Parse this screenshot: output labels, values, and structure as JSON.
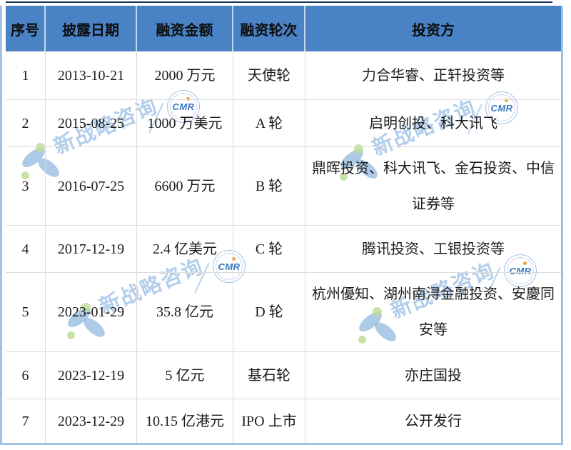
{
  "table": {
    "columns": [
      "序号",
      "披露日期",
      "融资金额",
      "融资轮次",
      "投资方"
    ],
    "rows": [
      {
        "no": "1",
        "date": "2013-10-21",
        "amount": "2000 万元",
        "round": "天使轮",
        "investors": "力合华睿、正轩投资等"
      },
      {
        "no": "2",
        "date": "2015-08-25",
        "amount": "1000 万美元",
        "round": "A 轮",
        "investors": "启明创投、科大讯飞"
      },
      {
        "no": "3",
        "date": "2016-07-25",
        "amount": "6600 万元",
        "round": "B 轮",
        "investors": "鼎晖投资、科大讯飞、金石投资、中信证券等"
      },
      {
        "no": "4",
        "date": "2017-12-19",
        "amount": "2.4 亿美元",
        "round": "C 轮",
        "investors": "腾讯投资、工银投资等"
      },
      {
        "no": "5",
        "date": "2023-01-29",
        "amount": "35.8 亿元",
        "round": "D 轮",
        "investors": "杭州優知、湖州南浔金融投资、安慶同安等"
      },
      {
        "no": "6",
        "date": "2023-12-19",
        "amount": "5 亿元",
        "round": "基石轮",
        "investors": "亦庄国投"
      },
      {
        "no": "7",
        "date": "2023-12-29",
        "amount": "10.15 亿港元",
        "round": "IPO 上市",
        "investors": "公开发行"
      }
    ]
  },
  "watermark": {
    "brand_text": "新战略咨询",
    "badge_text": "CMR"
  },
  "colors": {
    "header_bg": "#4a82c6",
    "outer_border": "#9cc3e6",
    "top_line": "#16365c",
    "grid_line": "#dcdcdc",
    "watermark_blue": "#8eb6de",
    "watermark_green": "#bedd96",
    "badge_orange": "#e8a33d"
  }
}
